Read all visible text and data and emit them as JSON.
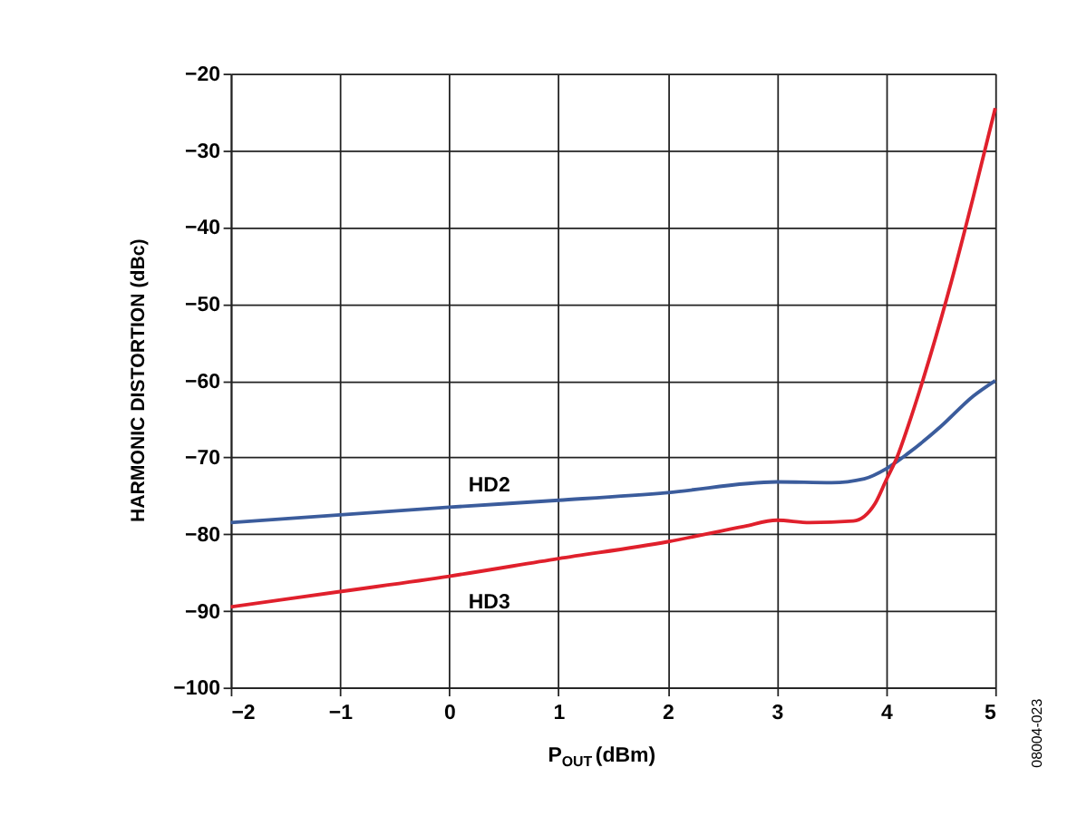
{
  "chart_data": {
    "type": "line",
    "xlabel": "P$_{OUT}$ (dBm)",
    "ylabel": "HARMONIC DISTORTION (dBc)",
    "xlim": [
      -2,
      5
    ],
    "xticks": [
      -2,
      -1,
      0,
      1,
      2,
      3,
      4,
      5
    ],
    "ylim": [
      -100,
      -20
    ],
    "yticks": [
      -100,
      -90,
      -80,
      -70,
      -60,
      -50,
      -40,
      -30,
      -20
    ],
    "grid": true,
    "legend": false,
    "marker": "none",
    "line_style": "solid",
    "series": [
      {
        "name": "HD2",
        "color": "#3b5c9c",
        "x": [
          -2,
          -1,
          0,
          1,
          2,
          3,
          3.5,
          3.8,
          4,
          4.2,
          4.5,
          4.8,
          5
        ],
        "values": [
          -78.5,
          -77.5,
          -76.5,
          -75.6,
          -74.6,
          -73.2,
          -73.3,
          -72.8,
          -71.5,
          -69.5,
          -66,
          -62,
          -60
        ]
      },
      {
        "name": "HD3",
        "color": "#e0202c",
        "x": [
          -2,
          -1,
          0,
          1,
          2,
          2.7,
          3,
          3.3,
          3.7,
          3.9,
          4,
          4.1,
          4.2,
          4.4,
          4.6,
          4.8,
          5
        ],
        "values": [
          -89.5,
          -87.5,
          -85.5,
          -83.2,
          -81,
          -79,
          -78.2,
          -78.5,
          -78.3,
          -76,
          -73,
          -70,
          -66,
          -57,
          -47,
          -36,
          -24.5
        ]
      }
    ],
    "annotations": [
      "08004-023"
    ]
  }
}
